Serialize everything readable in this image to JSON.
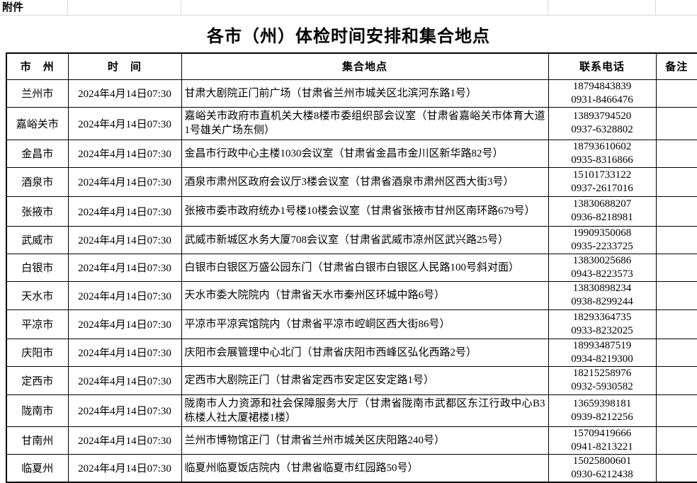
{
  "page": {
    "attachment_label": "附件",
    "title": "各市（州）体检时间安排和集合地点"
  },
  "table": {
    "headers": {
      "city": "市　州",
      "time": "时　间",
      "location": "集合地点",
      "phone": "联系电话",
      "remark": "备注"
    },
    "rows": [
      {
        "city": "兰州市",
        "time": "2024年4月14日07:30",
        "location": "甘肃大剧院正门前广场（甘肃省兰州市城关区北滨河东路1号）",
        "phones": [
          "18794843839",
          "0931-8466476"
        ],
        "remark": ""
      },
      {
        "city": "嘉峪关市",
        "time": "2024年4月14日07:30",
        "location": "嘉峪关市政府市直机关大楼8楼市委组织部会议室（甘肃省嘉峪关市体育大道1号雄关广场东侧）",
        "phones": [
          "13893794520",
          "0937-6328802"
        ],
        "remark": ""
      },
      {
        "city": "金昌市",
        "time": "2024年4月14日07:30",
        "location": "金昌市行政中心主楼1030会议室（甘肃省金昌市金川区新华路82号）",
        "phones": [
          "18793610602",
          "0935-8316866"
        ],
        "remark": ""
      },
      {
        "city": "酒泉市",
        "time": "2024年4月14日07:30",
        "location": "酒泉市肃州区政府会议厅3楼会议室（甘肃省酒泉市肃州区西大街3号）",
        "phones": [
          "15101733122",
          "0937-2617016"
        ],
        "remark": ""
      },
      {
        "city": "张掖市",
        "time": "2024年4月14日07:30",
        "location": "张掖市委市政府统办1号楼10楼会议室（甘肃省张掖市甘州区南环路679号）",
        "phones": [
          "13830688207",
          "0936-8218981"
        ],
        "remark": ""
      },
      {
        "city": "武威市",
        "time": "2024年4月14日07:30",
        "location": "武威市新城区水务大厦708会议室（甘肃省武威市凉州区武兴路25号）",
        "phones": [
          "19909350068",
          "0935-2233725"
        ],
        "remark": ""
      },
      {
        "city": "白银市",
        "time": "2024年4月14日07:30",
        "location": "白银市白银区万盛公园东门（甘肃省白银市白银区人民路100号斜对面）",
        "phones": [
          "13830025686",
          "0943-8223573"
        ],
        "remark": ""
      },
      {
        "city": "天水市",
        "time": "2024年4月14日07:30",
        "location": "天水市委大院院内（甘肃省天水市秦州区环城中路6号）",
        "phones": [
          "13830898234",
          "0938-8299244"
        ],
        "remark": ""
      },
      {
        "city": "平凉市",
        "time": "2024年4月14日07:30",
        "location": "平凉市平凉宾馆院内（甘肃省平凉市崆峒区西大街86号）",
        "phones": [
          "18293364735",
          "0933-8232025"
        ],
        "remark": ""
      },
      {
        "city": "庆阳市",
        "time": "2024年4月14日07:30",
        "location": "庆阳市会展管理中心北门（甘肃省庆阳市西峰区弘化西路2号）",
        "phones": [
          "18993487519",
          "0934-8219300"
        ],
        "remark": ""
      },
      {
        "city": "定西市",
        "time": "2024年4月14日07:30",
        "location": "定西市大剧院正门（甘肃省定西市安定区安定路1号）",
        "phones": [
          "18215258976",
          "0932-5930582"
        ],
        "remark": ""
      },
      {
        "city": "陇南市",
        "time": "2024年4月14日07:30",
        "location": "陇南市人力资源和社会保障服务大厅（甘肃省陇南市武都区东江行政中心B3栋楼人社大厦裙楼1楼）",
        "phones": [
          "13659398181",
          "0939-8212256"
        ],
        "remark": ""
      },
      {
        "city": "甘南州",
        "time": "2024年4月14日07:30",
        "location": "兰州市博物馆正门（甘肃省兰州市城关区庆阳路240号）",
        "phones": [
          "15709419666",
          "0941-8213221"
        ],
        "remark": ""
      },
      {
        "city": "临夏州",
        "time": "2024年4月14日07:30",
        "location": "临夏州临夏饭店院内（甘肃省临夏市红园路50号）",
        "phones": [
          "15025800601",
          "0930-6212438"
        ],
        "remark": ""
      }
    ]
  }
}
